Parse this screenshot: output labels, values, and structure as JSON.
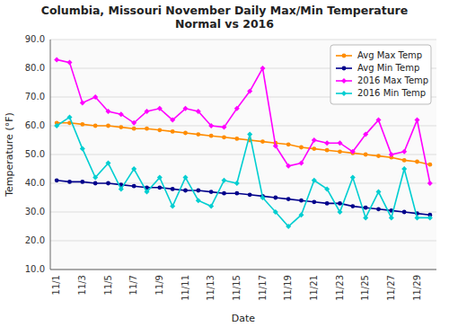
{
  "chart_data": {
    "type": "line",
    "title": "Columbia, Missouri November Daily Max/Min Temperature\nNormal vs 2016",
    "x_label": "Date",
    "y_label": "Temperature (°F)",
    "categories": [
      "11/1",
      null,
      "11/3",
      null,
      "11/5",
      null,
      "11/7",
      null,
      "11/9",
      null,
      "11/11",
      null,
      "11/13",
      null,
      "11/15",
      null,
      "11/17",
      null,
      "11/19",
      null,
      "11/21",
      null,
      "11/23",
      null,
      "11/25",
      null,
      "11/27",
      null,
      "11/29",
      null
    ],
    "series": [
      {
        "name": "Avg Max Temp",
        "color": "#FF8C00",
        "marker": "circle",
        "values": [
          61.0,
          61.0,
          60.5,
          60.0,
          60.0,
          59.5,
          59.0,
          59.0,
          58.5,
          58.0,
          57.5,
          57.0,
          56.5,
          56.0,
          55.5,
          55.0,
          54.5,
          54.0,
          53.5,
          52.5,
          52.0,
          51.5,
          51.0,
          50.5,
          50.0,
          49.5,
          49.0,
          48.0,
          47.5,
          46.5
        ]
      },
      {
        "name": "Avg Min Temp",
        "color": "#00008B",
        "marker": "circle",
        "values": [
          41.0,
          40.5,
          40.5,
          40.0,
          40.0,
          39.5,
          39.0,
          38.5,
          38.5,
          38.0,
          37.5,
          37.5,
          37.0,
          36.5,
          36.5,
          36.0,
          35.5,
          35.0,
          34.5,
          34.0,
          33.5,
          33.0,
          33.0,
          32.0,
          31.5,
          31.0,
          30.5,
          30.0,
          29.5,
          29.0
        ]
      },
      {
        "name": "2016 Max Temp",
        "color": "#FF00FF",
        "marker": "diamond",
        "values": [
          83.0,
          82.0,
          68.0,
          70.0,
          65.0,
          64.0,
          61.0,
          65.0,
          66.0,
          62.0,
          66.0,
          65.0,
          60.0,
          59.5,
          66.0,
          72.0,
          80.0,
          53.0,
          46.0,
          47.0,
          55.0,
          54.0,
          54.0,
          51.0,
          57.0,
          62.0,
          50.0,
          51.0,
          62.0,
          40.0
        ]
      },
      {
        "name": "2016 Min Temp",
        "color": "#00CED1",
        "marker": "diamond",
        "values": [
          60.0,
          63.0,
          52.0,
          42.0,
          47.0,
          38.0,
          45.0,
          37.0,
          42.0,
          32.0,
          42.0,
          34.0,
          32.0,
          41.0,
          40.0,
          57.0,
          35.0,
          30.0,
          25.0,
          29.0,
          41.0,
          38.0,
          30.0,
          42.0,
          28.0,
          37.0,
          28.0,
          45.0,
          28.0,
          28.0
        ]
      }
    ],
    "ylim": [
      10.0,
      90.0
    ],
    "yticks": [
      {
        "value": 10.0,
        "label": "10.0"
      },
      {
        "value": 20.0,
        "label": "20.0"
      },
      {
        "value": 30.0,
        "label": "30.0"
      },
      {
        "value": 40.0,
        "label": "40.0"
      },
      {
        "value": 50.0,
        "label": "50.0"
      },
      {
        "value": 60.0,
        "label": "60.0"
      },
      {
        "value": 70.0,
        "label": "70.0"
      },
      {
        "value": 80.0,
        "label": "80.0"
      },
      {
        "value": 90.0,
        "label": "90.0"
      }
    ],
    "grid": true,
    "legend": "upper right"
  }
}
